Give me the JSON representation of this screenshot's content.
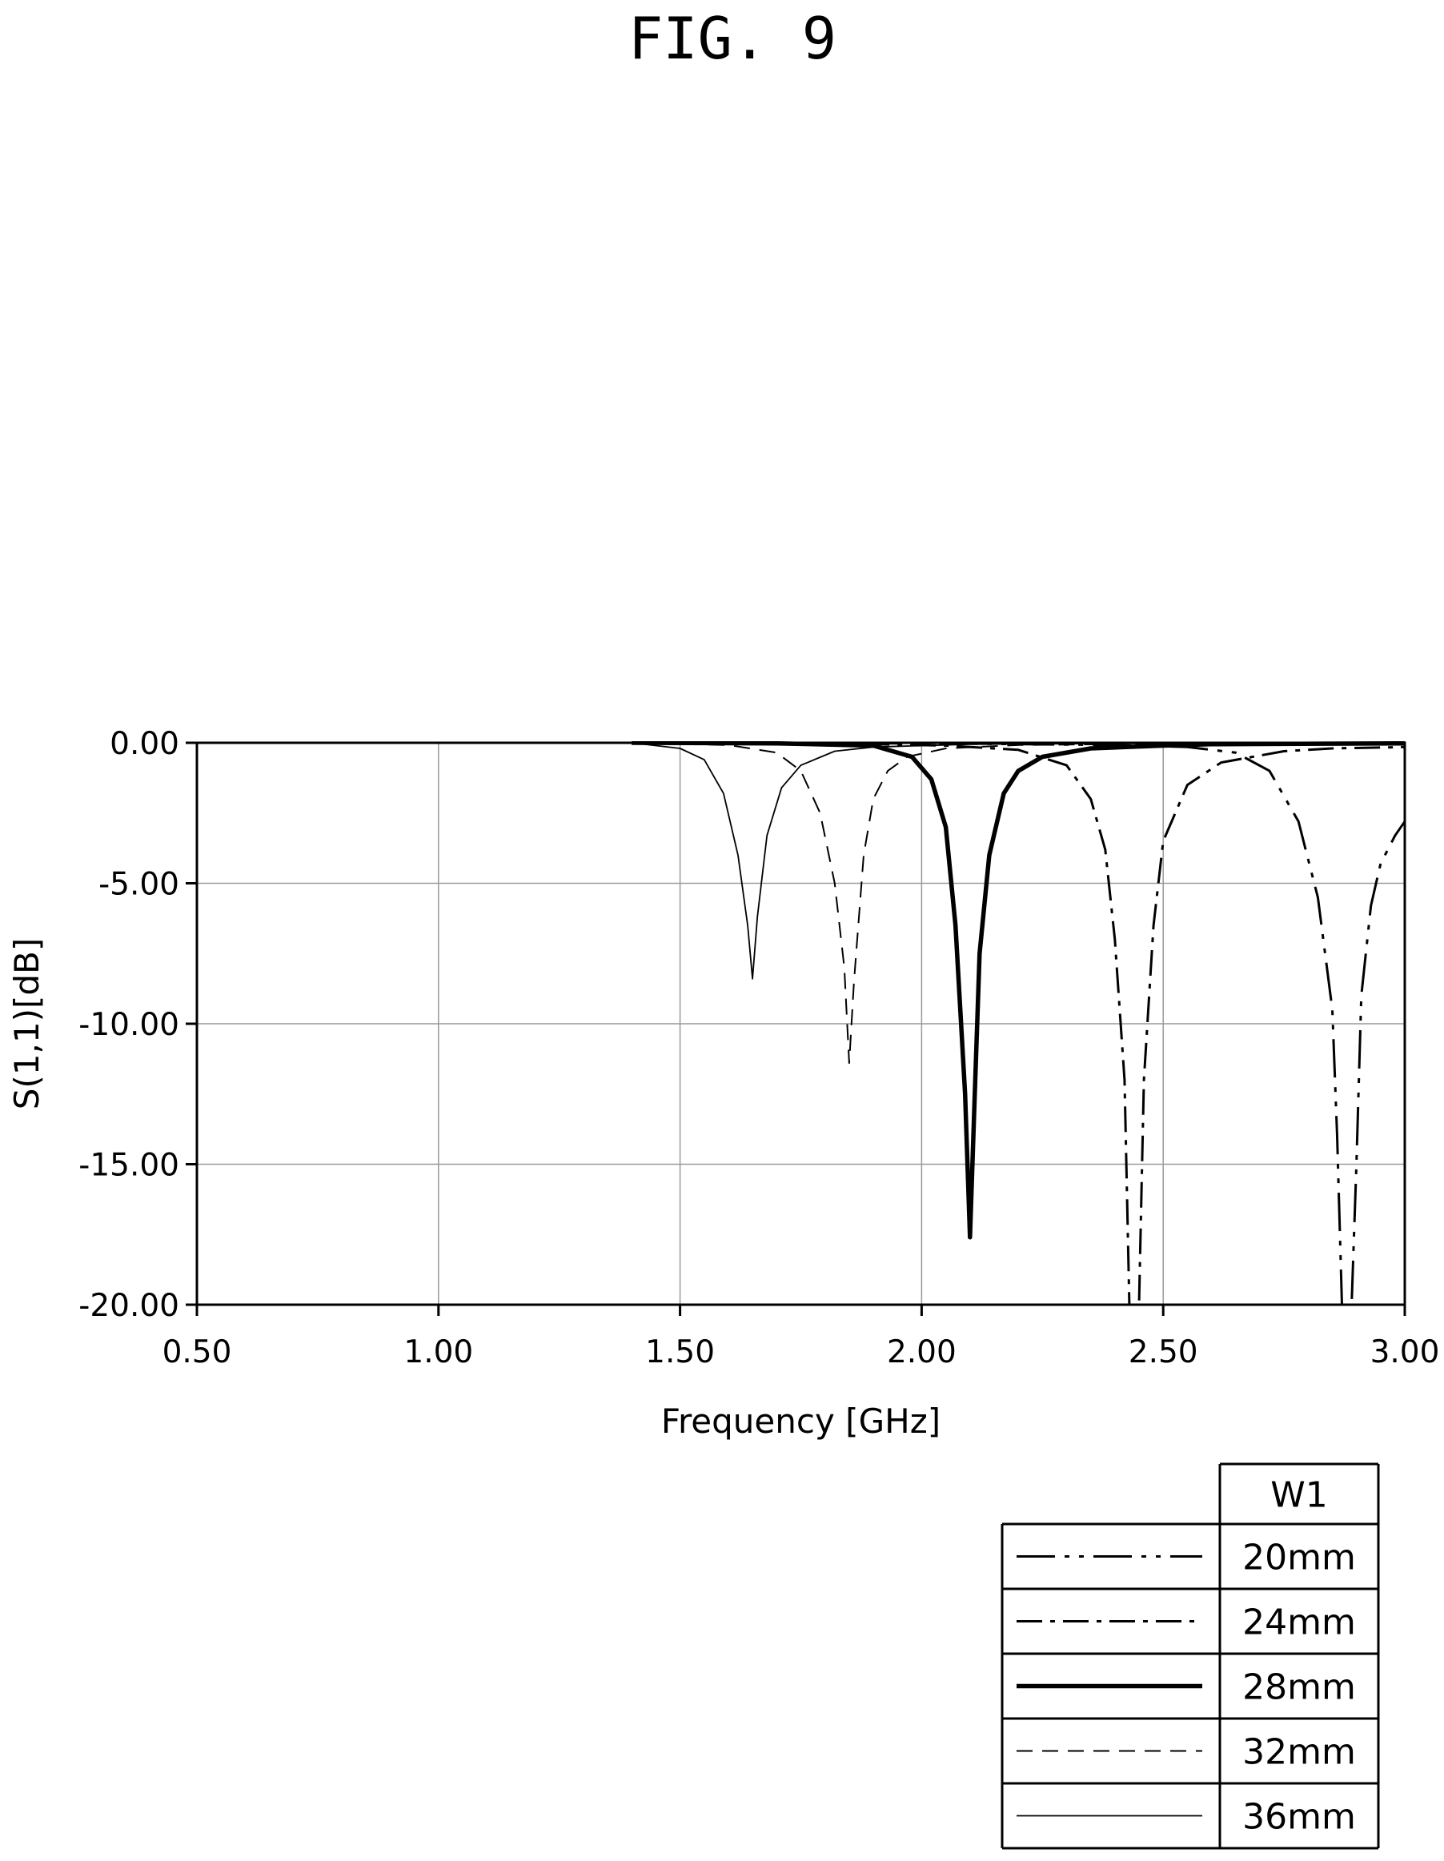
{
  "figure_label": "FIG. 9",
  "chart_data": {
    "type": "line",
    "xlabel": "Frequency [GHz]",
    "ylabel": "S(1,1)[dB]",
    "xlim": [
      0.5,
      3.0
    ],
    "ylim": [
      -20.0,
      0.0
    ],
    "x_ticks": [
      "0.50",
      "1.00",
      "1.50",
      "2.00",
      "2.50",
      "3.00"
    ],
    "y_ticks": [
      "0.00",
      "-5.00",
      "-10.00",
      "-15.00",
      "-20.00"
    ],
    "grid": true,
    "legend": {
      "position": "bottom-right",
      "header": "W1",
      "entries": [
        "20mm",
        "24mm",
        "28mm",
        "32mm",
        "36mm"
      ]
    },
    "series": [
      {
        "name": "20mm",
        "style": "dash-dot-dot",
        "x": [
          1.4,
          1.8,
          2.1,
          2.4,
          2.55,
          2.65,
          2.72,
          2.78,
          2.82,
          2.85,
          2.86,
          2.87,
          2.88,
          2.89,
          2.9,
          2.91,
          2.93,
          2.95,
          2.98,
          3.0
        ],
        "y": [
          0.0,
          -0.01,
          -0.03,
          -0.08,
          -0.15,
          -0.35,
          -1.0,
          -2.8,
          -5.5,
          -9.5,
          -14.0,
          -20.0,
          -22.0,
          -20.0,
          -15.0,
          -9.0,
          -5.8,
          -4.3,
          -3.3,
          -2.8
        ]
      },
      {
        "name": "24mm",
        "style": "dash-dot",
        "x": [
          1.4,
          1.7,
          1.9,
          2.05,
          2.2,
          2.3,
          2.35,
          2.38,
          2.4,
          2.42,
          2.43,
          2.44,
          2.45,
          2.46,
          2.48,
          2.5,
          2.55,
          2.62,
          2.75,
          2.85,
          3.0
        ],
        "y": [
          0.0,
          -0.02,
          -0.05,
          -0.1,
          -0.25,
          -0.8,
          -2.0,
          -3.8,
          -7.0,
          -12.0,
          -20.0,
          -23.0,
          -20.0,
          -12.0,
          -6.5,
          -3.5,
          -1.5,
          -0.7,
          -0.3,
          -0.2,
          -0.15
        ]
      },
      {
        "name": "28mm",
        "style": "thick-solid",
        "x": [
          1.4,
          1.7,
          1.9,
          1.98,
          2.02,
          2.05,
          2.07,
          2.09,
          2.1,
          2.11,
          2.12,
          2.14,
          2.17,
          2.2,
          2.25,
          2.35,
          2.5,
          2.6,
          3.0
        ],
        "y": [
          0.0,
          -0.02,
          -0.1,
          -0.5,
          -1.3,
          -3.0,
          -6.5,
          -12.5,
          -17.6,
          -12.5,
          -7.5,
          -4.0,
          -1.8,
          -1.0,
          -0.5,
          -0.2,
          -0.1,
          -0.05,
          -0.02
        ]
      },
      {
        "name": "32mm",
        "style": "dashed",
        "x": [
          1.4,
          1.6,
          1.7,
          1.75,
          1.79,
          1.82,
          1.84,
          1.85,
          1.86,
          1.88,
          1.9,
          1.93,
          1.97,
          2.05,
          2.2,
          2.5,
          3.0
        ],
        "y": [
          0.0,
          -0.08,
          -0.35,
          -1.0,
          -2.5,
          -5.0,
          -8.0,
          -11.4,
          -8.5,
          -4.0,
          -2.0,
          -1.0,
          -0.5,
          -0.2,
          -0.08,
          -0.03,
          -0.01
        ]
      },
      {
        "name": "36mm",
        "style": "thin-solid",
        "x": [
          1.4,
          1.5,
          1.55,
          1.59,
          1.62,
          1.64,
          1.65,
          1.66,
          1.68,
          1.71,
          1.75,
          1.82,
          1.9,
          2.1,
          2.5,
          3.0
        ],
        "y": [
          0.0,
          -0.2,
          -0.6,
          -1.8,
          -4.0,
          -6.5,
          -8.4,
          -6.2,
          -3.3,
          -1.6,
          -0.8,
          -0.3,
          -0.15,
          -0.05,
          -0.02,
          -0.01
        ]
      }
    ]
  }
}
